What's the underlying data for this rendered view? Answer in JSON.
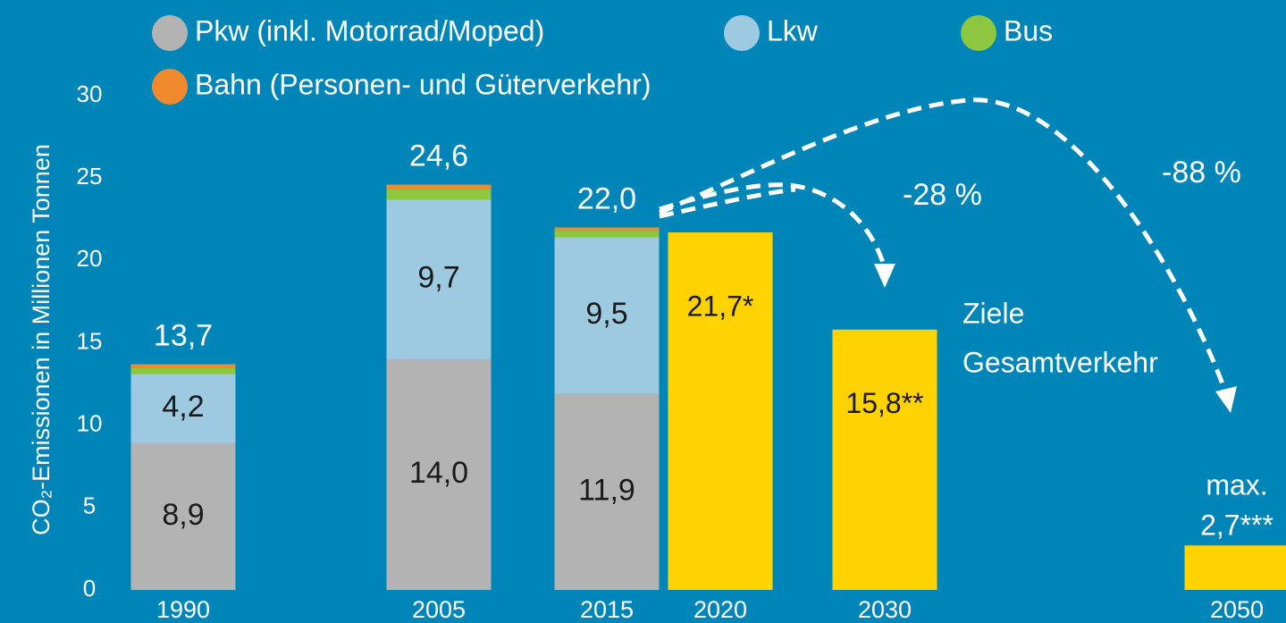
{
  "chart_data": {
    "type": "bar",
    "ylabel": "CO₂-Emissionen in Millionen Tonnen",
    "categories": [
      "1990",
      "2005",
      "2015",
      "2020",
      "2030",
      "2050"
    ],
    "series": [
      {
        "name": "Pkw (inkl. Motorrad/Moped)",
        "color": "#b3b3b3",
        "values": [
          8.9,
          14.0,
          11.9,
          null,
          null,
          null
        ],
        "value_labels": [
          "8,9",
          "14,0",
          "11,9",
          null,
          null,
          null
        ]
      },
      {
        "name": "Lkw",
        "color": "#9ecae1",
        "values": [
          4.2,
          9.7,
          9.5,
          null,
          null,
          null
        ],
        "value_labels": [
          "4,2",
          "9,7",
          "9,5",
          null,
          null,
          null
        ]
      },
      {
        "name": "Bus",
        "color": "#8dc63f",
        "values": [
          0.4,
          0.6,
          0.4,
          null,
          null,
          null
        ]
      },
      {
        "name": "Bahn (Personen- und Güterverkehr)",
        "color": "#f08a2c",
        "values": [
          0.2,
          0.3,
          0.2,
          null,
          null,
          null
        ]
      }
    ],
    "totals": [
      13.7,
      24.6,
      22.0,
      null,
      null,
      null
    ],
    "total_labels": [
      "13,7",
      "24,6",
      "22,0",
      null,
      null,
      null
    ],
    "targets": {
      "color": "#ffd200",
      "values": [
        null,
        null,
        null,
        21.7,
        15.8,
        2.7
      ],
      "value_labels": [
        null,
        null,
        null,
        "21,7*",
        "15,8**",
        "2,7***"
      ]
    },
    "annotations": [
      "-28 %",
      "-88 %",
      "Ziele",
      "Gesamtverkehr",
      "max."
    ],
    "ylim": [
      0,
      30
    ],
    "yticks": [
      0,
      5,
      10,
      15,
      20,
      25,
      30
    ],
    "grid": false
  }
}
